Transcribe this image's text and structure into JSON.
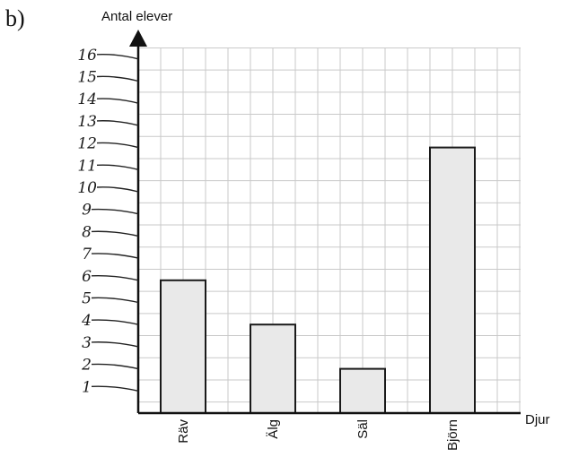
{
  "part_label": "b)",
  "chart_data": {
    "type": "bar",
    "categories": [
      "Räv",
      "Älg",
      "Säl",
      "Björn"
    ],
    "values": [
      6,
      4,
      2,
      12
    ],
    "title": "",
    "xlabel": "Djur",
    "ylabel": "Antal elever",
    "ylim": [
      0,
      16
    ],
    "yticks": [
      "1",
      "2",
      "3",
      "4",
      "5",
      "6",
      "7",
      "8",
      "9",
      "10",
      "11",
      "12",
      "13",
      "14",
      "15",
      "16"
    ],
    "grid": true,
    "bar_color": "#e9e9e9",
    "edge_color": "#1a1a1a"
  }
}
